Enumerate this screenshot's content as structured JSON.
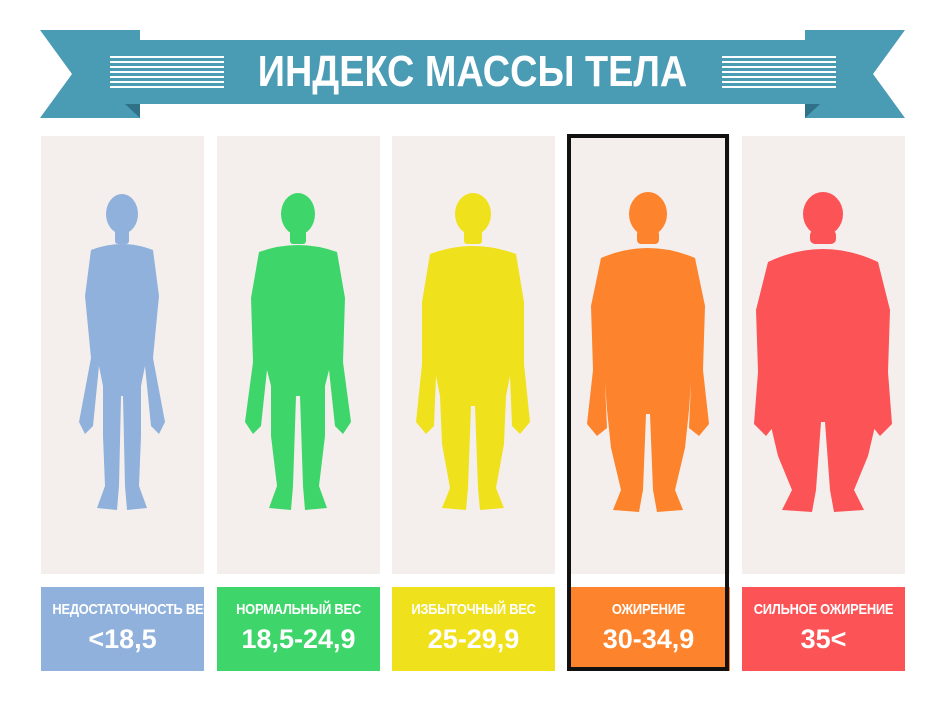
{
  "title": "ИНДЕКС МАССЫ ТЕЛА",
  "colors": {
    "banner": "#4a9bb4",
    "banner_dark": "#2f7186",
    "panel_bg": "#f4efec",
    "highlight_border": "#111111"
  },
  "categories": [
    {
      "name": "НЕДОСТАТОЧНОСТЬ ВЕСА",
      "range": "<18,5",
      "color": "#8fb1dc",
      "figure_icon": "slim-body-icon"
    },
    {
      "name": "НОРМАЛЬНЫЙ ВЕС",
      "range": "18,5-24,9",
      "color": "#3ed66a",
      "figure_icon": "normal-body-icon"
    },
    {
      "name": "ИЗБЫТОЧНЫЙ ВЕС",
      "range": "25-29,9",
      "color": "#f0e11d",
      "figure_icon": "overweight-body-icon"
    },
    {
      "name": "ОЖИРЕНИЕ",
      "range": "30-34,9",
      "color": "#fd832c",
      "figure_icon": "obese-body-icon",
      "highlighted": true
    },
    {
      "name": "СИЛЬНОЕ ОЖИРЕНИЕ",
      "range": "35<",
      "color": "#fc5356",
      "figure_icon": "severe-obese-body-icon"
    }
  ]
}
